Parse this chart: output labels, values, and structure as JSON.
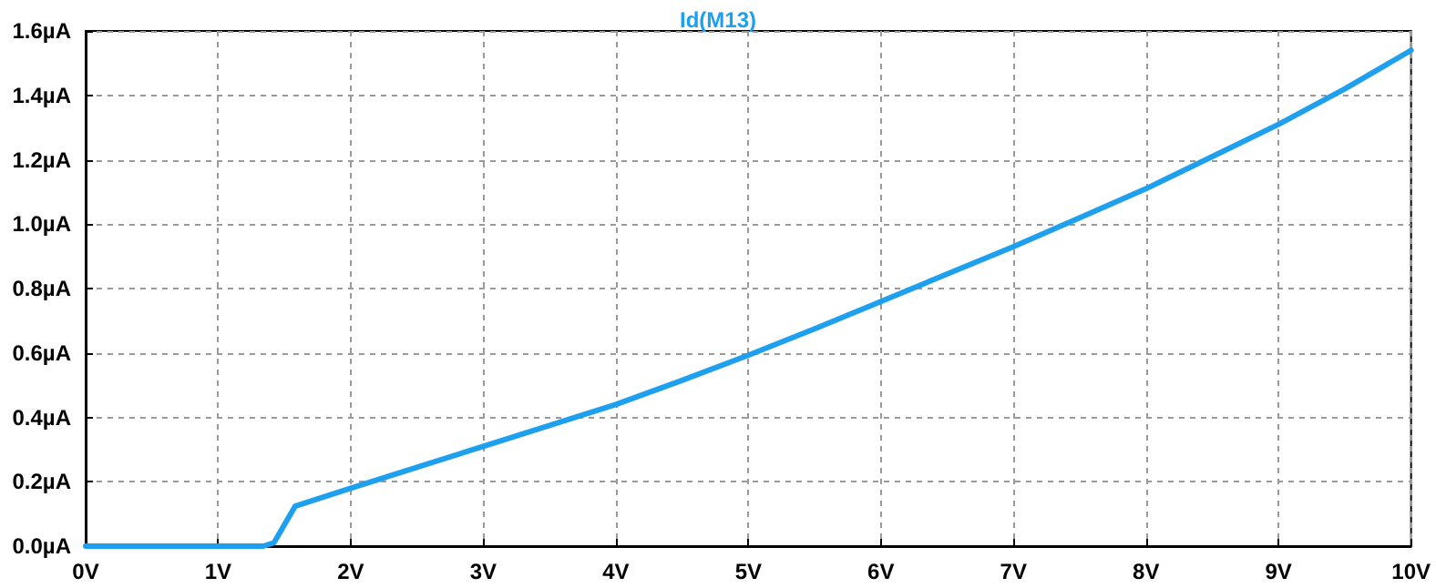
{
  "chart_data": {
    "type": "line",
    "title": "Id(M13)",
    "x": [
      0,
      1,
      1.34,
      1.42,
      1.58,
      2,
      2.5,
      3,
      3.5,
      4,
      4.5,
      5,
      5.5,
      6,
      6.5,
      7,
      7.5,
      8,
      8.5,
      9,
      9.5,
      10
    ],
    "series": [
      {
        "color": "#1ea0ef",
        "values": [
          0,
          0,
          0,
          0.01,
          0.124,
          0.18,
          0.245,
          0.31,
          0.375,
          0.44,
          0.515,
          0.593,
          0.675,
          0.76,
          0.845,
          0.93,
          1.02,
          1.11,
          1.21,
          1.31,
          1.42,
          1.54
        ]
      }
    ],
    "xlim": [
      0,
      10
    ],
    "xticks": [
      {
        "value": 0,
        "label": "0V"
      },
      {
        "value": 1,
        "label": "1V"
      },
      {
        "value": 2,
        "label": "2V"
      },
      {
        "value": 3,
        "label": "3V"
      },
      {
        "value": 4,
        "label": "4V"
      },
      {
        "value": 5,
        "label": "5V"
      },
      {
        "value": 6,
        "label": "6V"
      },
      {
        "value": 7,
        "label": "7V"
      },
      {
        "value": 8,
        "label": "8V"
      },
      {
        "value": 9,
        "label": "9V"
      },
      {
        "value": 10,
        "label": "10V"
      }
    ],
    "ylim": [
      0,
      1.6
    ],
    "yticks": [
      {
        "value": 0,
        "label": "0.0µA"
      },
      {
        "value": 0.2,
        "label": "0.2µA"
      },
      {
        "value": 0.4,
        "label": "0.4µA"
      },
      {
        "value": 0.6,
        "label": "0.6µA"
      },
      {
        "value": 0.8,
        "label": "0.8µA"
      },
      {
        "value": 1.0,
        "label": "1.0µA"
      },
      {
        "value": 1.2,
        "label": "1.2µA"
      },
      {
        "value": 1.4,
        "label": "1.4µA"
      },
      {
        "value": 1.6,
        "label": "1.6µA"
      }
    ],
    "grid": true,
    "marker": "none",
    "line_style": "solid"
  }
}
